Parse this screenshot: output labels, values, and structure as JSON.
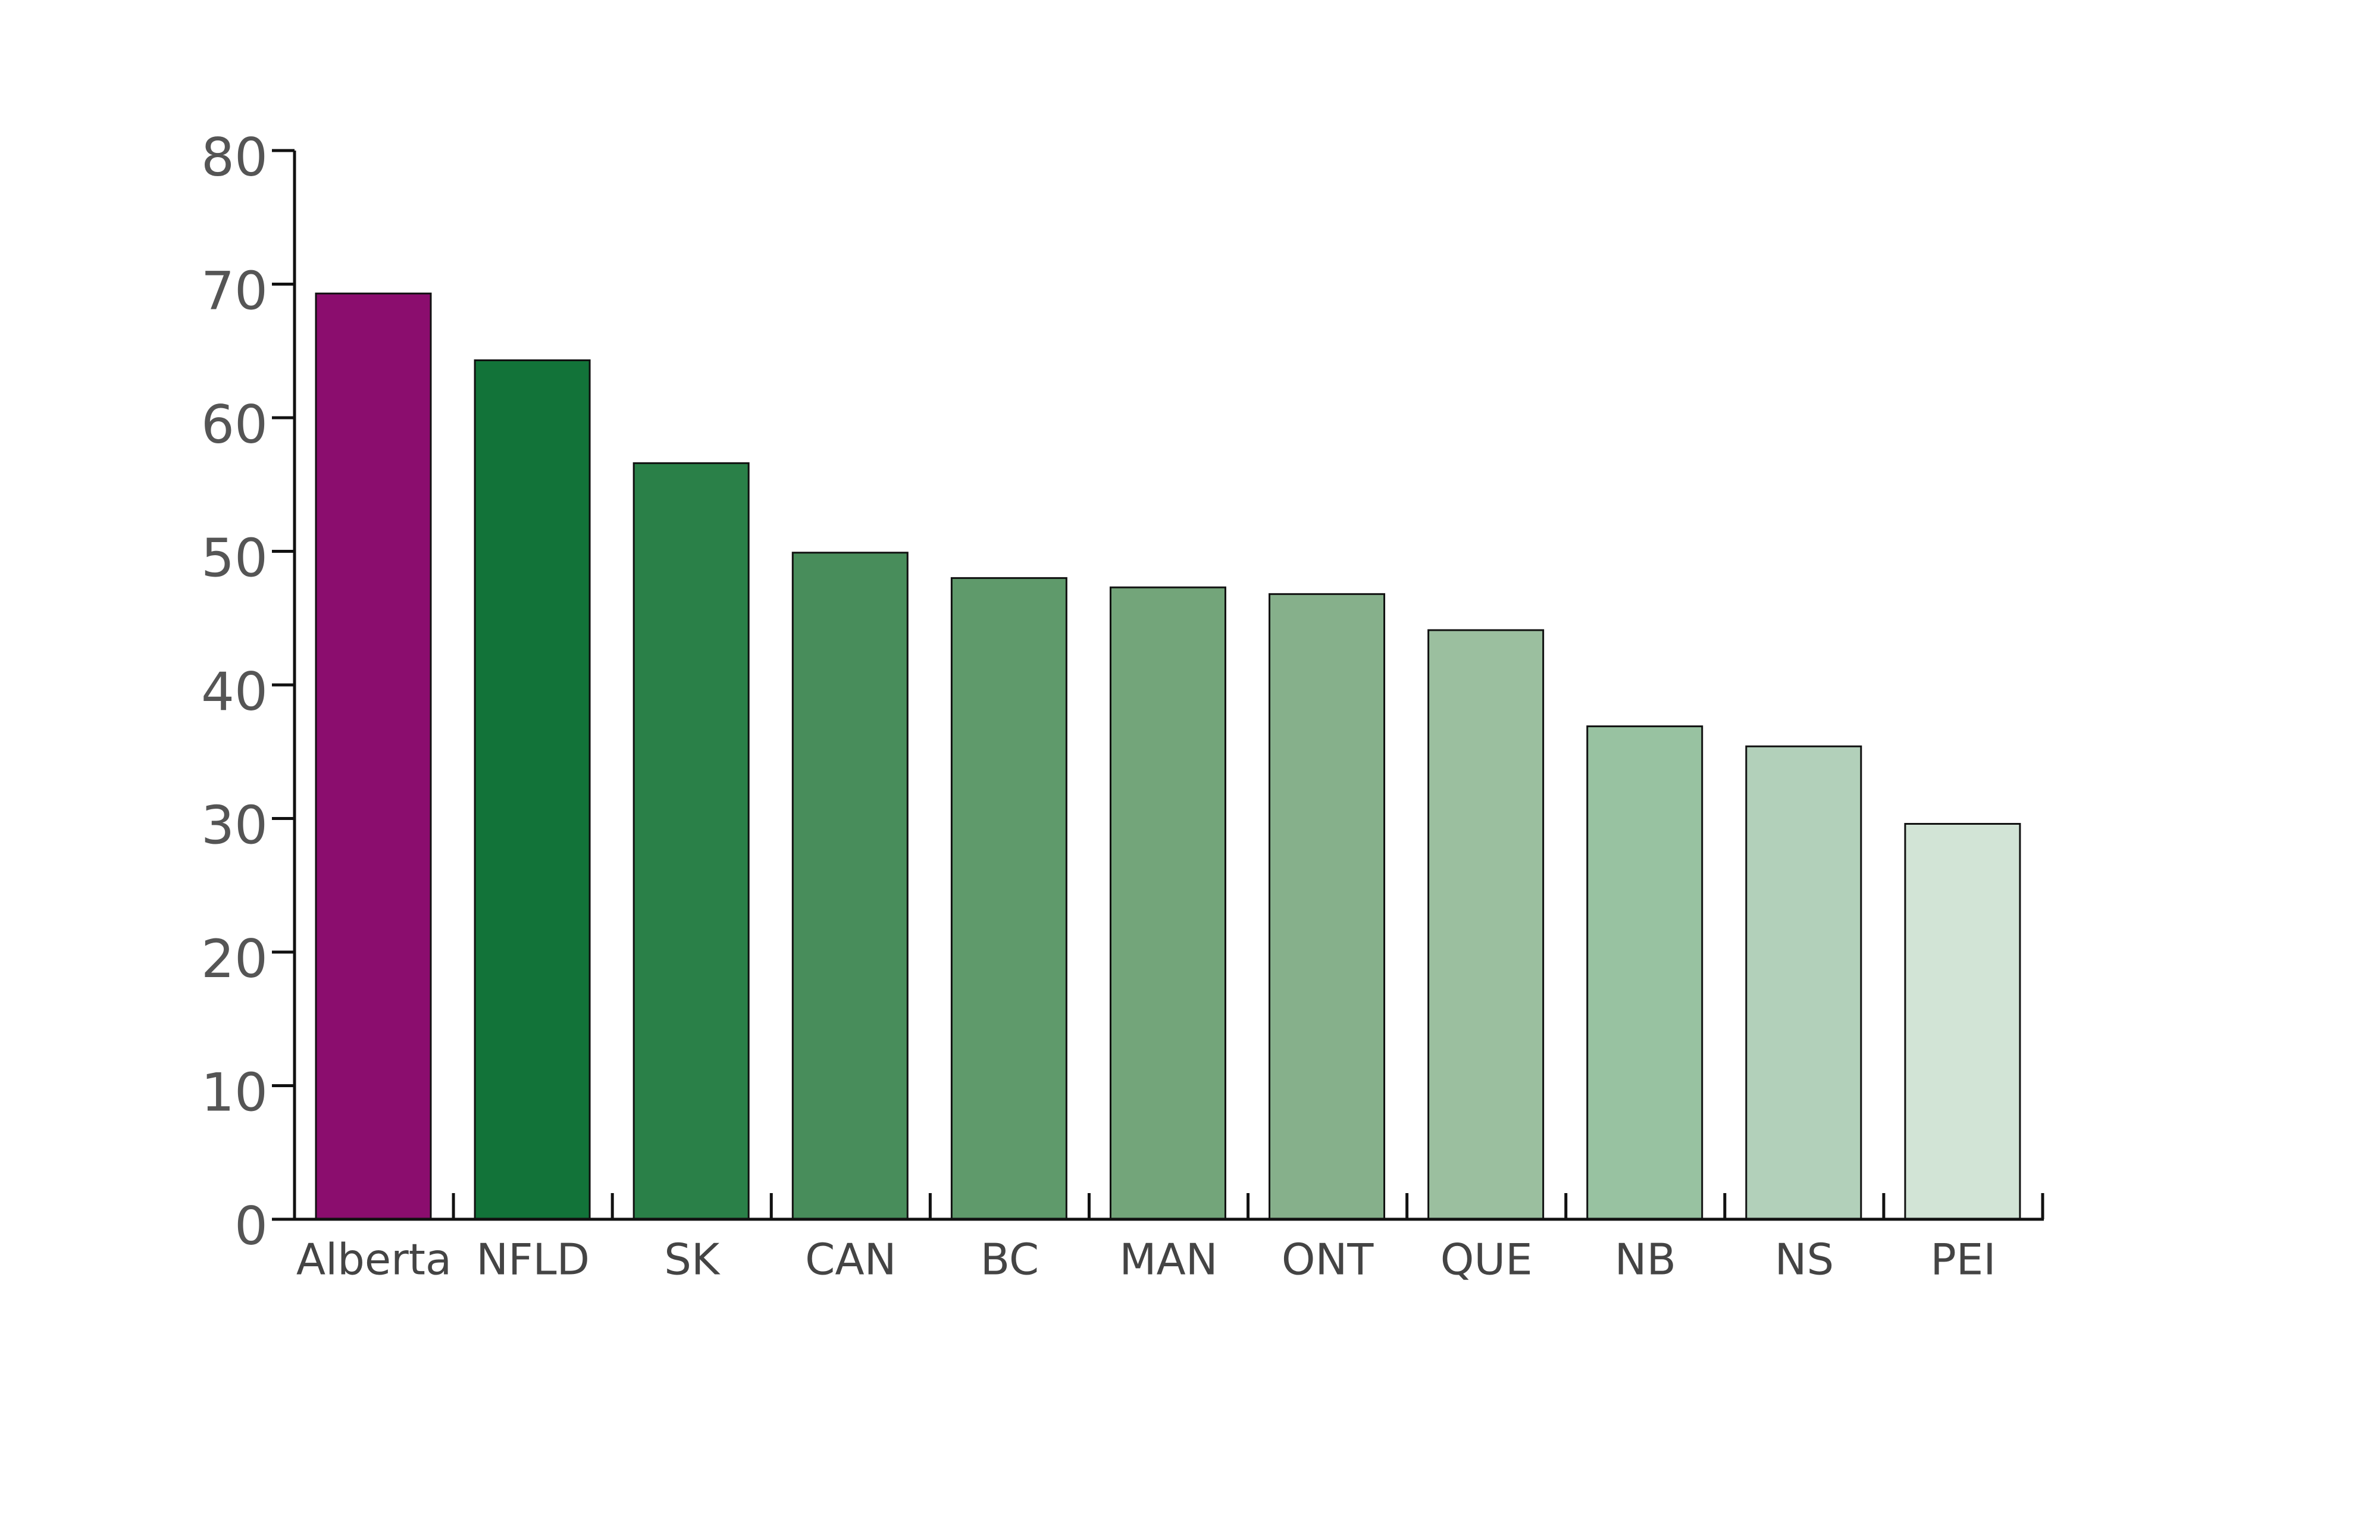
{
  "chart_data": {
    "type": "bar",
    "categories": [
      "Alberta",
      "NFLD",
      "SK",
      "CAN",
      "BC",
      "MAN",
      "ONT",
      "QUE",
      "NB",
      "NS",
      "PEI"
    ],
    "values": [
      69.3,
      64.3,
      56.6,
      49.9,
      48.0,
      47.3,
      46.8,
      44.1,
      36.9,
      35.4,
      29.6
    ],
    "colors": [
      "#8b0d6e",
      "#127339",
      "#2a8048",
      "#488d5b",
      "#5f9a6b",
      "#73a57a",
      "#86b08b",
      "#9bbf9f",
      "#98c2a1",
      "#b2d0ba",
      "#d2e4d6"
    ],
    "ylim": [
      0,
      80
    ],
    "yticks": [
      0,
      10,
      20,
      30,
      40,
      50,
      60,
      70,
      80
    ],
    "grid": false
  }
}
